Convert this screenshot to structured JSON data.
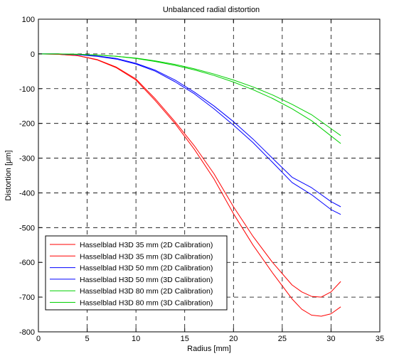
{
  "chart_data": {
    "type": "line",
    "title": "Unbalanced radial distortion",
    "xlabel": "Radius [mm]",
    "ylabel": "Distortion [μm]",
    "xlim": [
      0,
      35
    ],
    "ylim": [
      -800,
      100
    ],
    "xticks": [
      0,
      5,
      10,
      15,
      20,
      25,
      30,
      35
    ],
    "yticks": [
      100,
      0,
      -100,
      -200,
      -300,
      -400,
      -500,
      -600,
      -700,
      -800
    ],
    "grid": true,
    "legend_position": "bottom-left",
    "series": [
      {
        "name": "Hasselblad H3D 35 mm (2D Calibration)",
        "color": "#ff0000",
        "x": [
          0,
          2,
          4,
          6,
          8,
          10,
          12,
          14,
          16,
          18,
          20,
          22,
          24,
          26,
          27,
          28,
          29,
          30,
          31
        ],
        "y": [
          0,
          -1,
          -5,
          -16,
          -38,
          -72,
          -130,
          -195,
          -265,
          -345,
          -440,
          -525,
          -600,
          -665,
          -685,
          -698,
          -700,
          -685,
          -655
        ]
      },
      {
        "name": "Hasselblad H3D 35 mm (3D Calibration)",
        "color": "#ff0000",
        "x": [
          0,
          2,
          4,
          6,
          8,
          10,
          12,
          14,
          16,
          18,
          20,
          22,
          24,
          26,
          27,
          28,
          29,
          30,
          31
        ],
        "y": [
          0,
          -1,
          -5,
          -17,
          -40,
          -75,
          -135,
          -200,
          -275,
          -360,
          -460,
          -550,
          -630,
          -705,
          -735,
          -752,
          -755,
          -748,
          -728
        ]
      },
      {
        "name": "Hasselblad H3D 50 mm (2D Calibration)",
        "color": "#0000ff",
        "x": [
          0,
          2,
          4,
          6,
          8,
          10,
          12,
          14,
          16,
          18,
          20,
          22,
          24,
          26,
          28,
          30,
          31
        ],
        "y": [
          0,
          0,
          -2,
          -6,
          -13,
          -27,
          -47,
          -75,
          -110,
          -150,
          -195,
          -245,
          -300,
          -355,
          -385,
          -425,
          -440
        ]
      },
      {
        "name": "Hasselblad H3D 50 mm (3D Calibration)",
        "color": "#0000ff",
        "x": [
          0,
          2,
          4,
          6,
          8,
          10,
          12,
          14,
          16,
          18,
          20,
          22,
          24,
          26,
          28,
          30,
          31
        ],
        "y": [
          0,
          0,
          -2,
          -7,
          -15,
          -29,
          -50,
          -80,
          -115,
          -158,
          -205,
          -255,
          -312,
          -370,
          -405,
          -448,
          -462
        ]
      },
      {
        "name": "Hasselblad H3D 80 mm (2D Calibration)",
        "color": "#00d000",
        "x": [
          0,
          2,
          4,
          6,
          8,
          10,
          12,
          14,
          16,
          18,
          20,
          22,
          24,
          26,
          28,
          30,
          31
        ],
        "y": [
          0,
          0,
          -1,
          -3,
          -7,
          -12,
          -20,
          -30,
          -43,
          -58,
          -75,
          -95,
          -118,
          -145,
          -175,
          -215,
          -235
        ]
      },
      {
        "name": "Hasselblad H3D 80 mm (3D Calibration)",
        "color": "#00d000",
        "x": [
          0,
          2,
          4,
          6,
          8,
          10,
          12,
          14,
          16,
          18,
          20,
          22,
          24,
          26,
          28,
          30,
          31
        ],
        "y": [
          0,
          0,
          -1,
          -3,
          -7,
          -13,
          -22,
          -33,
          -46,
          -62,
          -81,
          -103,
          -128,
          -158,
          -192,
          -236,
          -258
        ]
      }
    ]
  }
}
